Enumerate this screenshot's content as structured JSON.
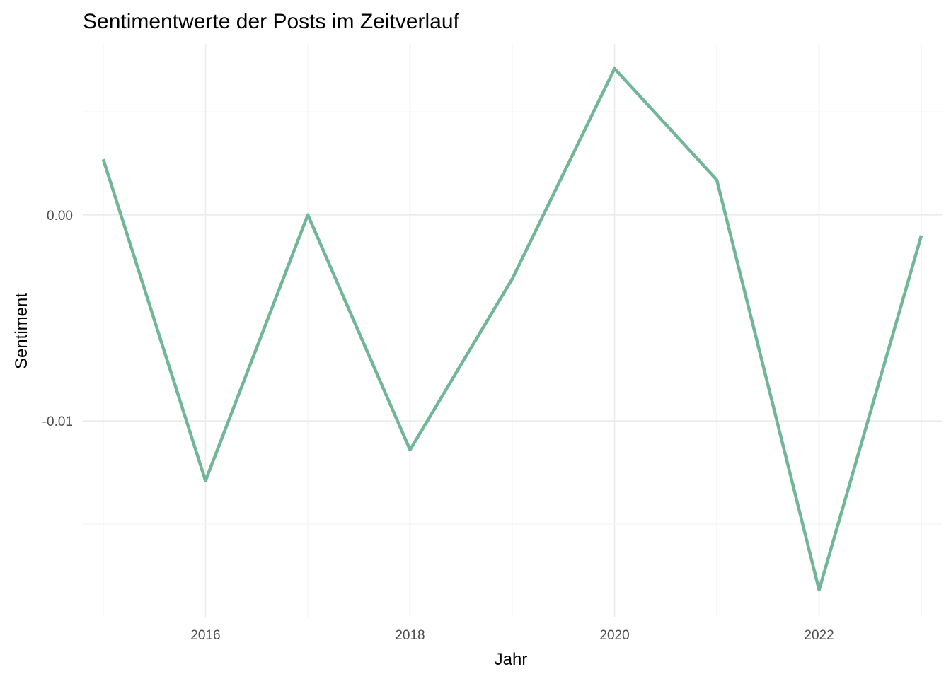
{
  "chart_data": {
    "type": "line",
    "title": "Sentimentwerte der Posts im Zeitverlauf",
    "xlabel": "Jahr",
    "ylabel": "Sentiment",
    "x_ticks": [
      2016,
      2018,
      2020,
      2022
    ],
    "x_tick_labels": [
      "2016",
      "2018",
      "2020",
      "2022"
    ],
    "y_ticks": [
      0.0,
      -0.01
    ],
    "y_tick_labels": [
      "0.00",
      "-0.01"
    ],
    "xlim": [
      2014.8,
      2023.2
    ],
    "ylim": [
      -0.0195,
      0.0083
    ],
    "grid": true,
    "line_color": "#72b69a",
    "series": [
      {
        "x": [
          2015,
          2016,
          2017,
          2018,
          2019,
          2020,
          2021,
          2022,
          2023
        ],
        "values": [
          0.0027,
          -0.0129,
          0.0,
          -0.0114,
          -0.0031,
          0.0071,
          0.0017,
          -0.0182,
          -0.001
        ]
      }
    ]
  }
}
